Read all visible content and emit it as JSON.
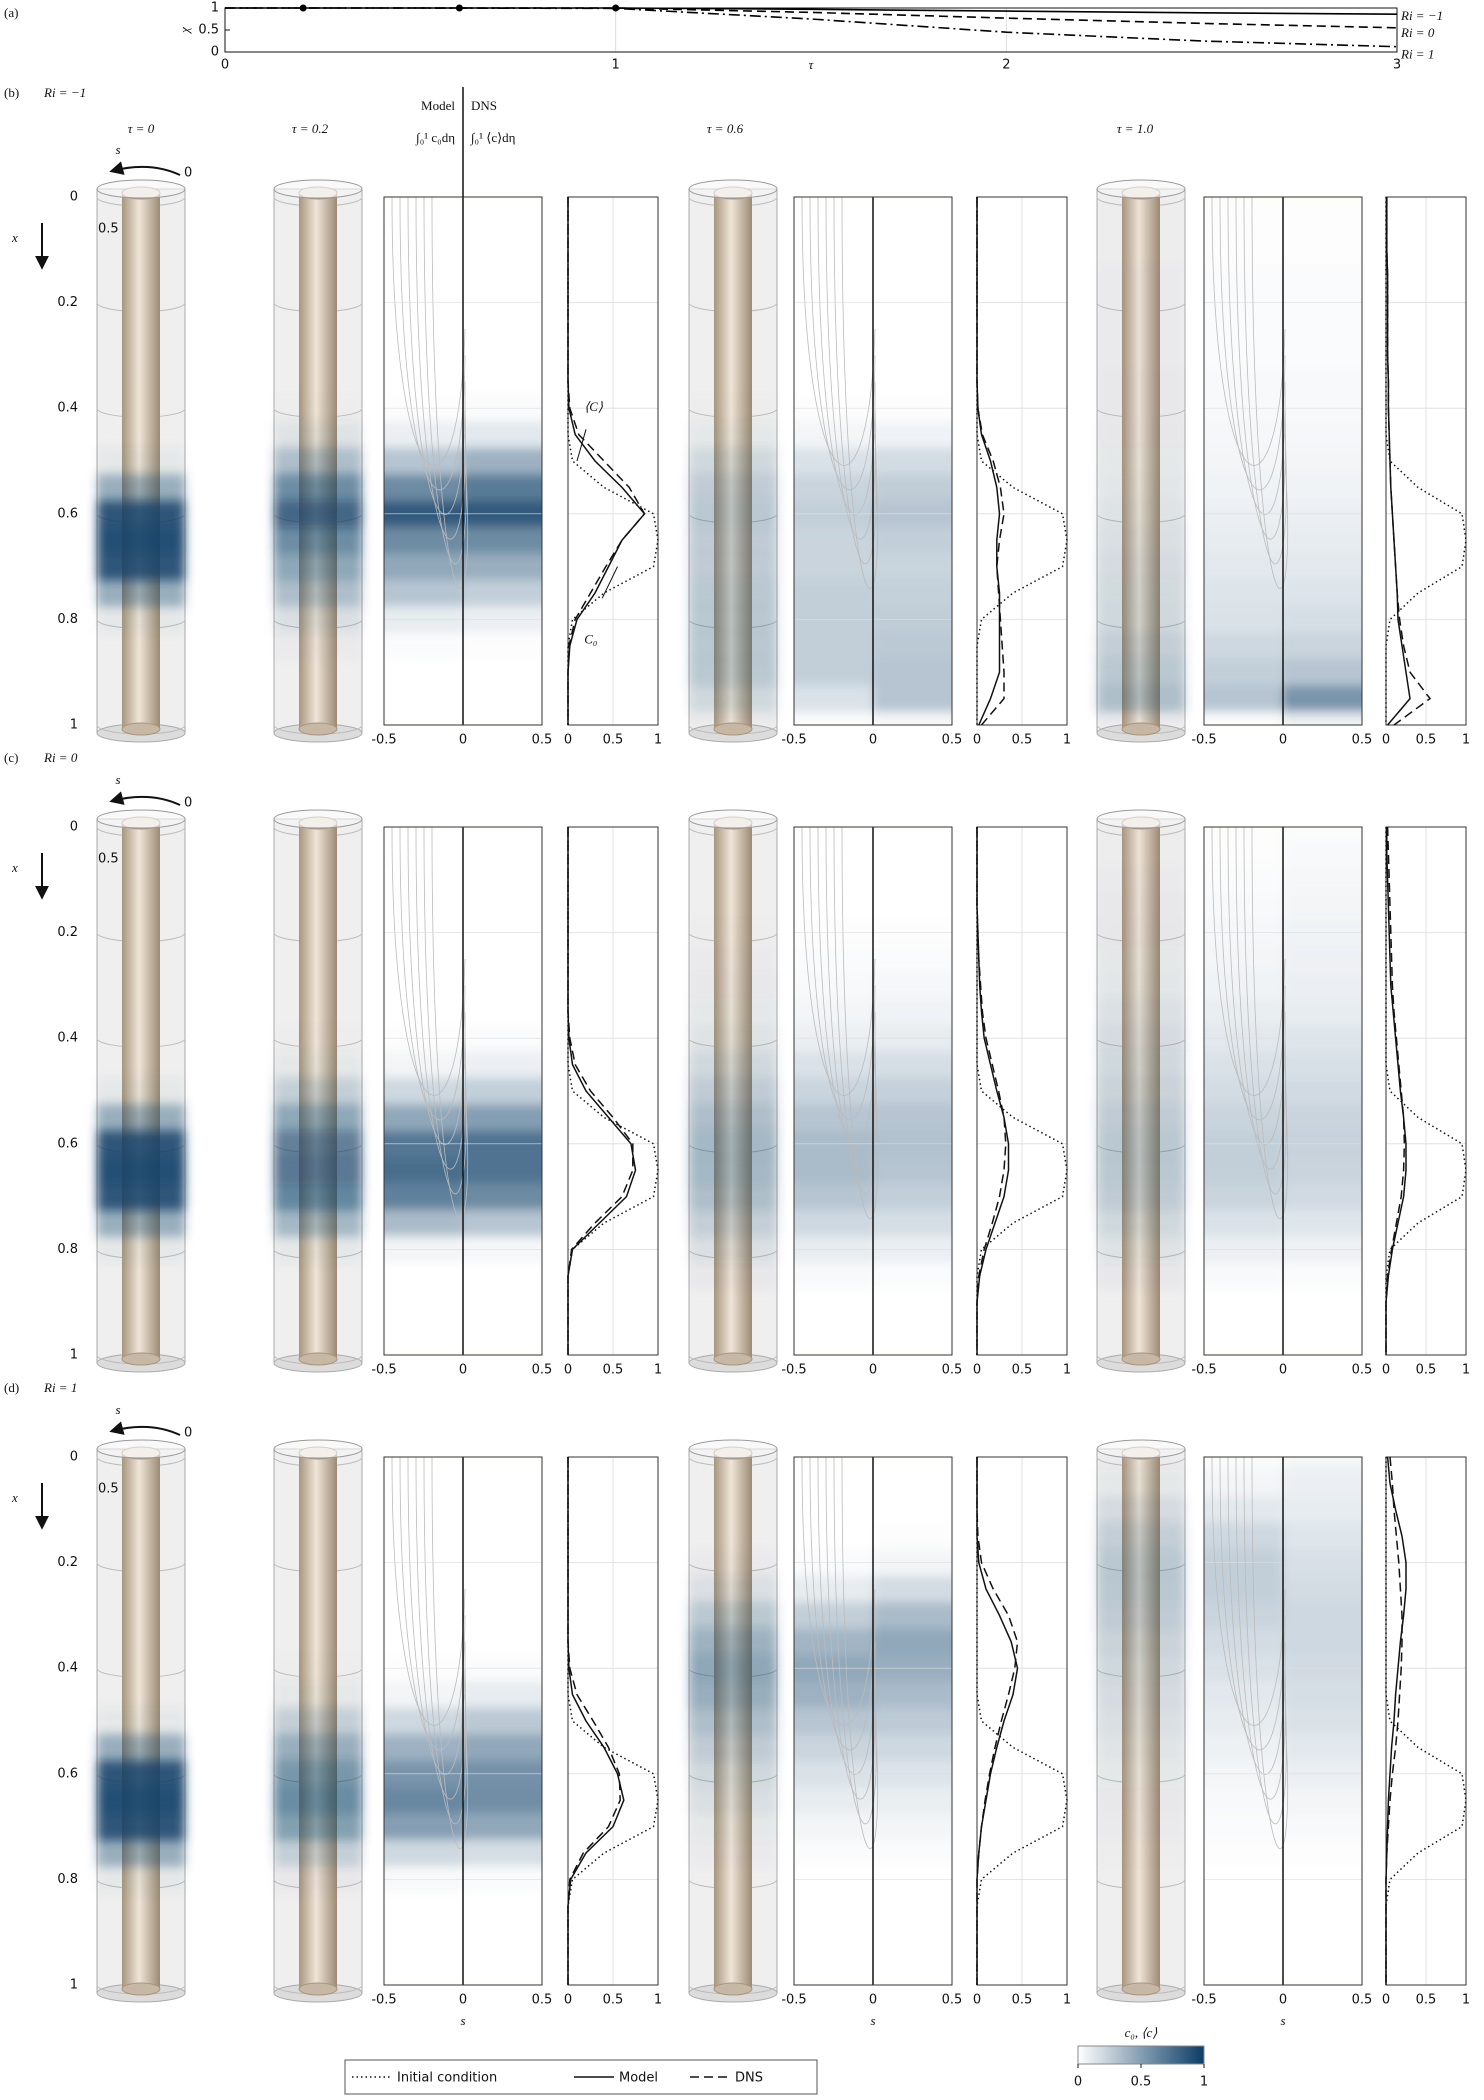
{
  "chart_data": [
    {
      "type": "line",
      "panel": "(a)",
      "ylabel": "χ",
      "xlabel": "τ",
      "x": [
        0,
        0.5,
        1,
        1.5,
        2,
        2.5,
        3
      ],
      "xlim": [
        0,
        3
      ],
      "xticks": [
        0,
        1,
        2,
        3
      ],
      "ylim": [
        0,
        1
      ],
      "yticks": [
        0,
        0.5,
        1
      ],
      "grid": true,
      "series": [
        {
          "name": "Ri = −1",
          "color": "#000000",
          "style": "solid",
          "values": [
            1,
            1,
            1,
            0.97,
            0.93,
            0.89,
            0.86
          ]
        },
        {
          "name": "Ri = 0",
          "color": "#000000",
          "style": "dashed",
          "values": [
            1,
            1,
            1,
            0.9,
            0.77,
            0.65,
            0.55
          ]
        },
        {
          "name": "Ri = 1",
          "color": "#000000",
          "style": "dashdot",
          "values": [
            1,
            1,
            0.99,
            0.75,
            0.45,
            0.25,
            0.12
          ]
        }
      ],
      "markers": {
        "x": [
          0.2,
          0.6,
          1
        ],
        "values": [
          1,
          1,
          1
        ],
        "color": "#000000"
      }
    },
    {
      "type": "profiles",
      "panel": "(b)",
      "label": "Ri = −1",
      "taus": [
        "τ = 0",
        "τ = 0.2",
        "τ = 0.6",
        "τ = 1.0"
      ],
      "header": {
        "model": "Model",
        "dns": "DNS",
        "model_expr": "∫₀¹ c₀dη",
        "dns_expr": "∫₀¹ ⟨c⟩dη"
      },
      "ylabel": "x",
      "s_label": "s",
      "s_ticks": [
        0,
        0.5
      ],
      "ylim": [
        0,
        1
      ],
      "yticks": [
        0,
        0.2,
        0.4,
        0.6,
        0.8,
        1
      ],
      "map_xlim": [
        -0.5,
        0.5
      ],
      "map_xticks": [
        -0.5,
        0,
        0.5
      ],
      "profile_xlim": [
        0,
        1
      ],
      "profile_xticks": [
        0,
        0.5,
        1
      ],
      "x": [
        0,
        0.05,
        0.1,
        0.15,
        0.2,
        0.25,
        0.3,
        0.35,
        0.4,
        0.45,
        0.5,
        0.55,
        0.6,
        0.65,
        0.7,
        0.75,
        0.8,
        0.85,
        0.9,
        0.95,
        1
      ],
      "initial": [
        0,
        0,
        0,
        0,
        0,
        0,
        0,
        0,
        0,
        0,
        0.05,
        0.4,
        0.95,
        1,
        0.95,
        0.4,
        0.05,
        0,
        0,
        0,
        0
      ],
      "snapshots": [
        {
          "model": [
            0,
            0,
            0,
            0,
            0,
            0,
            0,
            0,
            0.01,
            0.08,
            0.3,
            0.6,
            0.85,
            0.6,
            0.45,
            0.3,
            0.1,
            0.02,
            0,
            0,
            0
          ],
          "dns": [
            0,
            0,
            0,
            0,
            0,
            0,
            0,
            0,
            0.02,
            0.12,
            0.4,
            0.68,
            0.85,
            0.6,
            0.42,
            0.25,
            0.08,
            0.01,
            0,
            0,
            0
          ],
          "annotations": [
            "⟨C⟩",
            "C₀"
          ]
        },
        {
          "model": [
            0,
            0,
            0,
            0,
            0,
            0,
            0,
            0,
            0.01,
            0.05,
            0.15,
            0.22,
            0.25,
            0.22,
            0.22,
            0.25,
            0.25,
            0.25,
            0.25,
            0.15,
            0.02
          ],
          "dns": [
            0,
            0,
            0,
            0,
            0,
            0,
            0,
            0,
            0.01,
            0.06,
            0.18,
            0.26,
            0.3,
            0.25,
            0.22,
            0.24,
            0.26,
            0.28,
            0.3,
            0.3,
            0.05
          ]
        },
        {
          "model": [
            0.01,
            0.01,
            0.01,
            0.02,
            0.02,
            0.02,
            0.02,
            0.03,
            0.03,
            0.04,
            0.05,
            0.06,
            0.08,
            0.1,
            0.12,
            0.14,
            0.15,
            0.2,
            0.25,
            0.3,
            0.02
          ],
          "dns": [
            0.01,
            0.01,
            0.01,
            0.02,
            0.02,
            0.02,
            0.02,
            0.03,
            0.03,
            0.04,
            0.05,
            0.06,
            0.08,
            0.1,
            0.12,
            0.14,
            0.17,
            0.22,
            0.3,
            0.55,
            0.1
          ]
        }
      ]
    },
    {
      "type": "profiles",
      "panel": "(c)",
      "label": "Ri = 0",
      "ylabel": "x",
      "s_label": "s",
      "s_ticks": [
        0,
        0.5
      ],
      "ylim": [
        0,
        1
      ],
      "yticks": [
        0,
        0.2,
        0.4,
        0.6,
        0.8,
        1
      ],
      "map_xlim": [
        -0.5,
        0.5
      ],
      "map_xticks": [
        -0.5,
        0,
        0.5
      ],
      "profile_xlim": [
        0,
        1
      ],
      "profile_xticks": [
        0,
        0.5,
        1
      ],
      "x": [
        0,
        0.05,
        0.1,
        0.15,
        0.2,
        0.25,
        0.3,
        0.35,
        0.4,
        0.45,
        0.5,
        0.55,
        0.6,
        0.65,
        0.7,
        0.75,
        0.8,
        0.85,
        0.9,
        0.95,
        1
      ],
      "initial": [
        0,
        0,
        0,
        0,
        0,
        0,
        0,
        0,
        0,
        0,
        0.05,
        0.4,
        0.95,
        1,
        0.95,
        0.4,
        0.05,
        0,
        0,
        0,
        0
      ],
      "snapshots": [
        {
          "model": [
            0,
            0,
            0,
            0,
            0,
            0,
            0,
            0,
            0.01,
            0.05,
            0.2,
            0.45,
            0.7,
            0.75,
            0.65,
            0.35,
            0.05,
            0,
            0,
            0,
            0
          ],
          "dns": [
            0,
            0,
            0,
            0,
            0,
            0,
            0,
            0,
            0.02,
            0.08,
            0.25,
            0.5,
            0.72,
            0.72,
            0.6,
            0.3,
            0.04,
            0,
            0,
            0,
            0
          ]
        },
        {
          "model": [
            0,
            0,
            0,
            0,
            0.01,
            0.02,
            0.03,
            0.05,
            0.08,
            0.15,
            0.22,
            0.3,
            0.35,
            0.35,
            0.3,
            0.2,
            0.1,
            0.03,
            0,
            0,
            0
          ],
          "dns": [
            0,
            0,
            0,
            0,
            0.01,
            0.02,
            0.04,
            0.06,
            0.1,
            0.17,
            0.24,
            0.3,
            0.32,
            0.3,
            0.25,
            0.17,
            0.08,
            0.02,
            0,
            0,
            0
          ]
        },
        {
          "model": [
            0.01,
            0.01,
            0.02,
            0.03,
            0.04,
            0.05,
            0.06,
            0.09,
            0.12,
            0.15,
            0.18,
            0.22,
            0.25,
            0.25,
            0.22,
            0.15,
            0.08,
            0.03,
            0,
            0,
            0
          ],
          "dns": [
            0.02,
            0.03,
            0.04,
            0.05,
            0.06,
            0.07,
            0.08,
            0.1,
            0.13,
            0.16,
            0.19,
            0.22,
            0.23,
            0.22,
            0.19,
            0.13,
            0.07,
            0.02,
            0,
            0,
            0
          ]
        }
      ]
    },
    {
      "type": "profiles",
      "panel": "(d)",
      "label": "Ri = 1",
      "ylabel": "x",
      "s_label": "s",
      "s_ticks": [
        0,
        0.5
      ],
      "ylim": [
        0,
        1
      ],
      "yticks": [
        0,
        0.2,
        0.4,
        0.6,
        0.8,
        1
      ],
      "map_xlim": [
        -0.5,
        0.5
      ],
      "map_xticks": [
        -0.5,
        0,
        0.5
      ],
      "map_xlabel": "s",
      "profile_xlim": [
        0,
        1
      ],
      "profile_xticks": [
        0,
        0.5,
        1
      ],
      "x": [
        0,
        0.05,
        0.1,
        0.15,
        0.2,
        0.25,
        0.3,
        0.35,
        0.4,
        0.45,
        0.5,
        0.55,
        0.6,
        0.65,
        0.7,
        0.75,
        0.8,
        0.85,
        0.9,
        0.95,
        1
      ],
      "initial": [
        0,
        0,
        0,
        0,
        0,
        0,
        0,
        0,
        0,
        0,
        0.05,
        0.4,
        0.95,
        1,
        0.95,
        0.4,
        0.05,
        0,
        0,
        0,
        0
      ],
      "snapshots": [
        {
          "model": [
            0,
            0,
            0,
            0,
            0,
            0,
            0,
            0,
            0.01,
            0.05,
            0.2,
            0.4,
            0.55,
            0.62,
            0.5,
            0.2,
            0.03,
            0,
            0,
            0,
            0
          ],
          "dns": [
            0,
            0,
            0,
            0,
            0,
            0,
            0,
            0,
            0.02,
            0.1,
            0.28,
            0.45,
            0.57,
            0.58,
            0.45,
            0.17,
            0.02,
            0,
            0,
            0,
            0
          ]
        },
        {
          "model": [
            0,
            0,
            0,
            0,
            0.02,
            0.1,
            0.25,
            0.38,
            0.45,
            0.4,
            0.3,
            0.22,
            0.15,
            0.1,
            0.05,
            0.02,
            0,
            0,
            0,
            0,
            0
          ],
          "dns": [
            0,
            0,
            0,
            0.01,
            0.05,
            0.18,
            0.35,
            0.45,
            0.42,
            0.35,
            0.27,
            0.2,
            0.14,
            0.09,
            0.05,
            0.02,
            0,
            0,
            0,
            0,
            0
          ]
        },
        {
          "model": [
            0.02,
            0.05,
            0.12,
            0.2,
            0.25,
            0.25,
            0.22,
            0.18,
            0.15,
            0.12,
            0.1,
            0.07,
            0.05,
            0.03,
            0.02,
            0.01,
            0,
            0,
            0,
            0,
            0
          ],
          "dns": [
            0.05,
            0.08,
            0.1,
            0.13,
            0.16,
            0.18,
            0.2,
            0.2,
            0.19,
            0.17,
            0.15,
            0.12,
            0.08,
            0.05,
            0.03,
            0.01,
            0,
            0,
            0,
            0,
            0
          ]
        }
      ]
    }
  ],
  "legend": {
    "labels": [
      "Initial condition",
      "Model",
      "DNS"
    ]
  },
  "colorbar": {
    "label": "c₀, ⟨c⟩",
    "ticks": [
      0,
      0.5,
      1
    ],
    "colors": [
      "#ffffff",
      "#0b3d66"
    ]
  }
}
